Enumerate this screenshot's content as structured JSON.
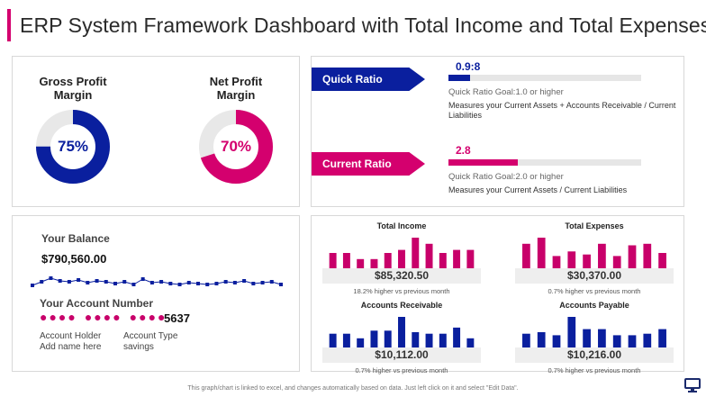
{
  "page_title": "ERP System Framework Dashboard with Total Income and Total Expenses",
  "colors": {
    "accent": "#d4006e",
    "navy": "#0a1f9e",
    "track": "#e8e8e8"
  },
  "margins": [
    {
      "title_line1": "Gross Profit",
      "title_line2": "Margin",
      "value_text": "75%",
      "value": 0.75,
      "color": "#0a1f9e"
    },
    {
      "title_line1": "Net Profit",
      "title_line2": "Margin",
      "value_text": "70%",
      "value": 0.7,
      "color": "#d4006e"
    }
  ],
  "ratios": [
    {
      "label": "Quick Ratio",
      "value": "0.9:8",
      "fill": 0.11,
      "color": "#0a1f9e",
      "goal": "Quick Ratio Goal:1.0  or higher",
      "desc": "Measures your Current Assets + Accounts Receivable / Current Liabilities"
    },
    {
      "label": "Current Ratio",
      "value": "2.8",
      "fill": 0.36,
      "color": "#d4006e",
      "goal": "Quick Ratio Goal:2.0  or higher",
      "desc": "Measures your Current Assets / Current Liabilities"
    }
  ],
  "balance": {
    "label": "Your Balance",
    "value": "$790,560.00",
    "spark_values": [
      0.35,
      0.55,
      0.75,
      0.6,
      0.55,
      0.65,
      0.5,
      0.6,
      0.55,
      0.45,
      0.55,
      0.4,
      0.7,
      0.5,
      0.55,
      0.45,
      0.4,
      0.5,
      0.45,
      0.4,
      0.45,
      0.55,
      0.5,
      0.6,
      0.45,
      0.5,
      0.55,
      0.4
    ]
  },
  "account": {
    "label": "Your Account Number",
    "masked": [
      "●●●●",
      "●●●●",
      "●●●●"
    ],
    "last4": "5637",
    "holder_label": "Account Holder",
    "holder_value": "Add name here",
    "type_label": "Account Type",
    "type_value": "savings"
  },
  "minis": [
    {
      "title": "Total Income",
      "amount": "$85,320.50",
      "note": "18.2% higher vs previous month",
      "color": "#c8006a",
      "bars": [
        0.5,
        0.5,
        0.3,
        0.3,
        0.5,
        0.6,
        1.0,
        0.8,
        0.5,
        0.6,
        0.6
      ]
    },
    {
      "title": "Total Expenses",
      "amount": "$30,370.00",
      "note": "0.7% higher vs  previous  month",
      "color": "#c8006a",
      "bars": [
        0.8,
        1.0,
        0.4,
        0.55,
        0.45,
        0.8,
        0.4,
        0.75,
        0.8,
        0.5
      ]
    },
    {
      "title": "Accounts Receivable",
      "amount": "$10,112.00",
      "note": "0.7% higher vs  previous  month",
      "color": "#0a1f9e",
      "bars": [
        0.45,
        0.45,
        0.3,
        0.55,
        0.55,
        1.0,
        0.5,
        0.45,
        0.45,
        0.65,
        0.3
      ]
    },
    {
      "title": "Accounts Payable",
      "amount": "$10,216.00",
      "note": "0.7% higher vs  previous  month",
      "color": "#0a1f9e",
      "bars": [
        0.45,
        0.5,
        0.4,
        1.0,
        0.6,
        0.6,
        0.4,
        0.4,
        0.45,
        0.6
      ]
    }
  ],
  "footer": "This graph/chart is linked to excel,  and changes automatically based on data. Just left click on it and select \"Edit Data\".",
  "footer_icon": "monitor-icon"
}
